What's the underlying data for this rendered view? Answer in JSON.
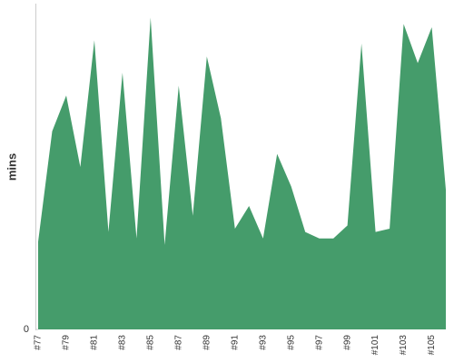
{
  "chart_data": {
    "type": "area",
    "y_label": "mins",
    "categories": [
      "#77",
      null,
      "#79",
      null,
      "#81",
      null,
      "#83",
      null,
      "#85",
      null,
      "#87",
      null,
      "#89",
      null,
      "#91",
      null,
      "#93",
      null,
      "#95",
      null,
      "#97",
      null,
      "#99",
      null,
      "#101",
      null,
      "#103",
      null,
      "#105",
      null
    ],
    "values": [
      27,
      61,
      72,
      50,
      89,
      30,
      79,
      28,
      96,
      26,
      75,
      35,
      84,
      65,
      31,
      38,
      28,
      54,
      44,
      30,
      28,
      28,
      32,
      88,
      30,
      31,
      94,
      82,
      93,
      43
    ],
    "color": "#459c6b",
    "ylim": [
      0,
      100
    ],
    "yticks": [
      0
    ]
  }
}
